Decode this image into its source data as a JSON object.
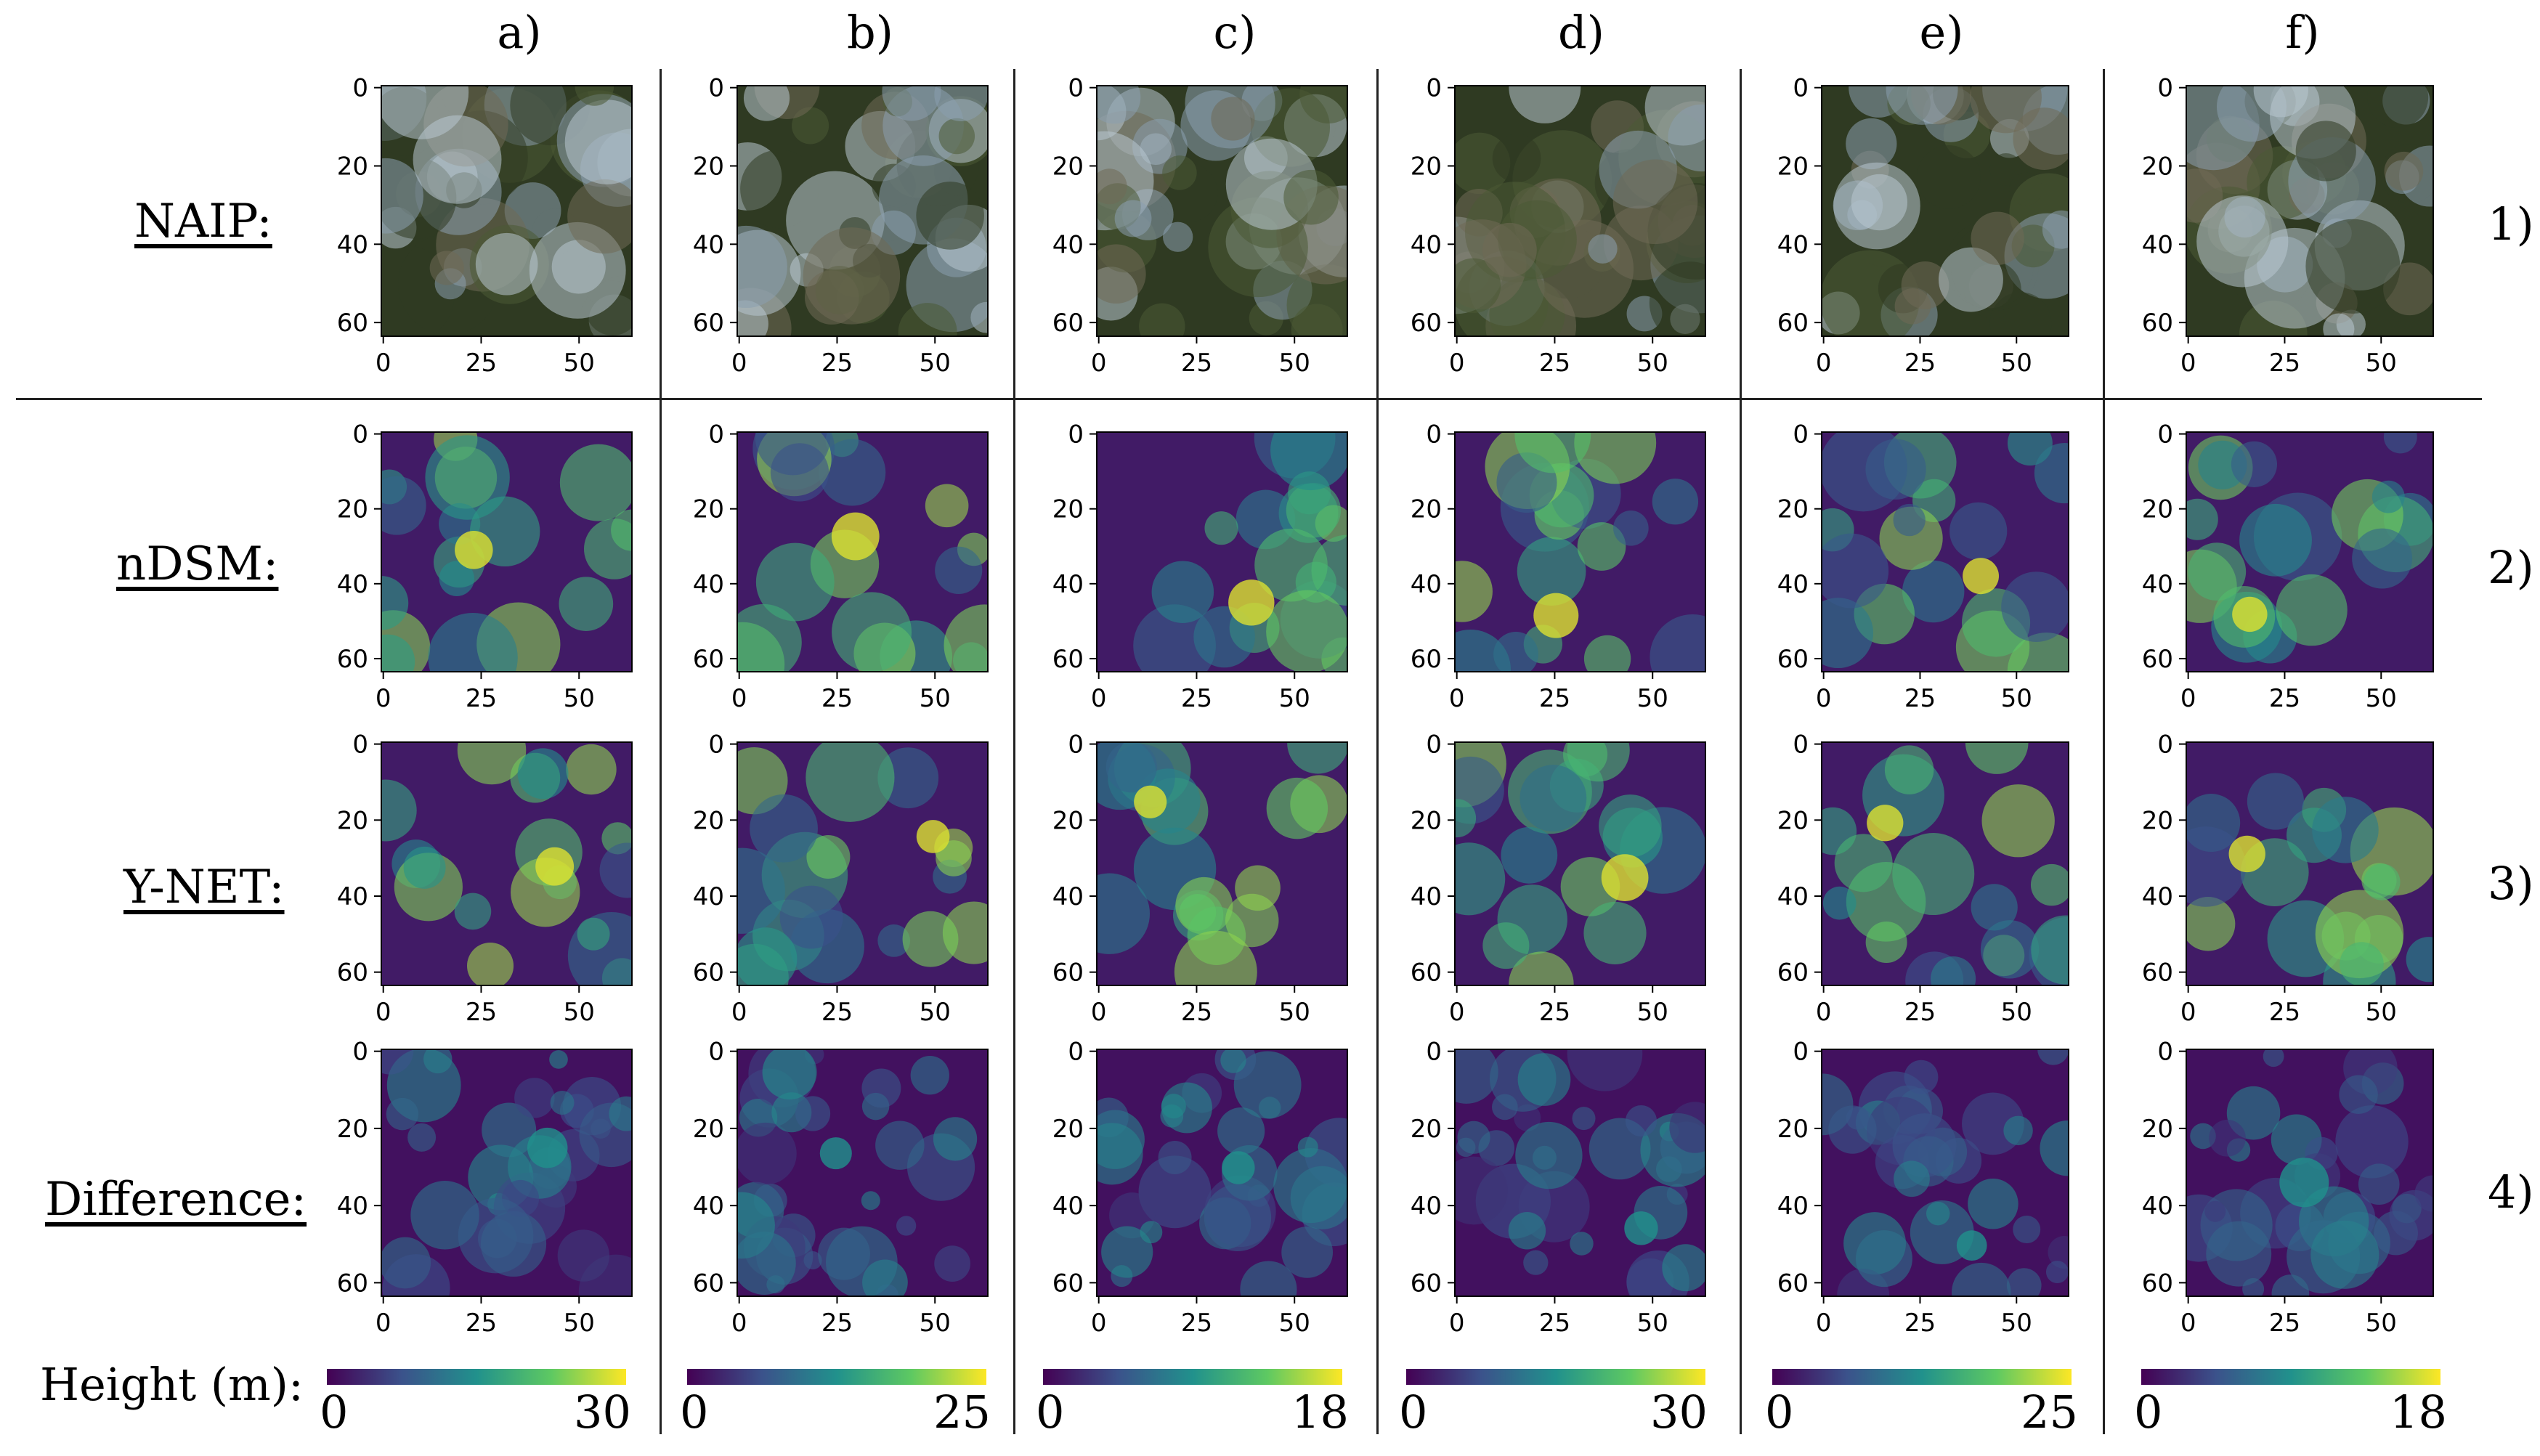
{
  "figure": {
    "columns": [
      "a)",
      "b)",
      "c)",
      "d)",
      "e)",
      "f)"
    ],
    "row_labels": [
      "NAIP:",
      "nDSM:",
      "Y-NET:",
      "Difference:"
    ],
    "row_numbers": [
      "1)",
      "2)",
      "3)",
      "4)"
    ],
    "colorbar_label": "Height (m):",
    "colorbar_max": [
      "30",
      "25",
      "18",
      "30",
      "25",
      "18"
    ],
    "colorbar_min": "0",
    "colormap": [
      "#440154",
      "#3b528b",
      "#21918c",
      "#5ec962",
      "#fde725"
    ],
    "naip_palette": [
      "#2f3a22",
      "#4a5a35",
      "#8a9fae",
      "#b8c6d0",
      "#6f6a55"
    ]
  },
  "chart_data": {
    "type": "heatmap",
    "panel_grid": "4 rows x 6 columns of 64x64 pixel raster panels",
    "x_ticks": [
      "0",
      "25",
      "50"
    ],
    "y_ticks": [
      "0",
      "20",
      "40",
      "60"
    ],
    "xlim": [
      0,
      63
    ],
    "ylim": [
      63,
      0
    ],
    "colorbar_ranges_m": [
      [
        0,
        30
      ],
      [
        0,
        25
      ],
      [
        0,
        18
      ],
      [
        0,
        30
      ],
      [
        0,
        25
      ],
      [
        0,
        18
      ]
    ]
  }
}
